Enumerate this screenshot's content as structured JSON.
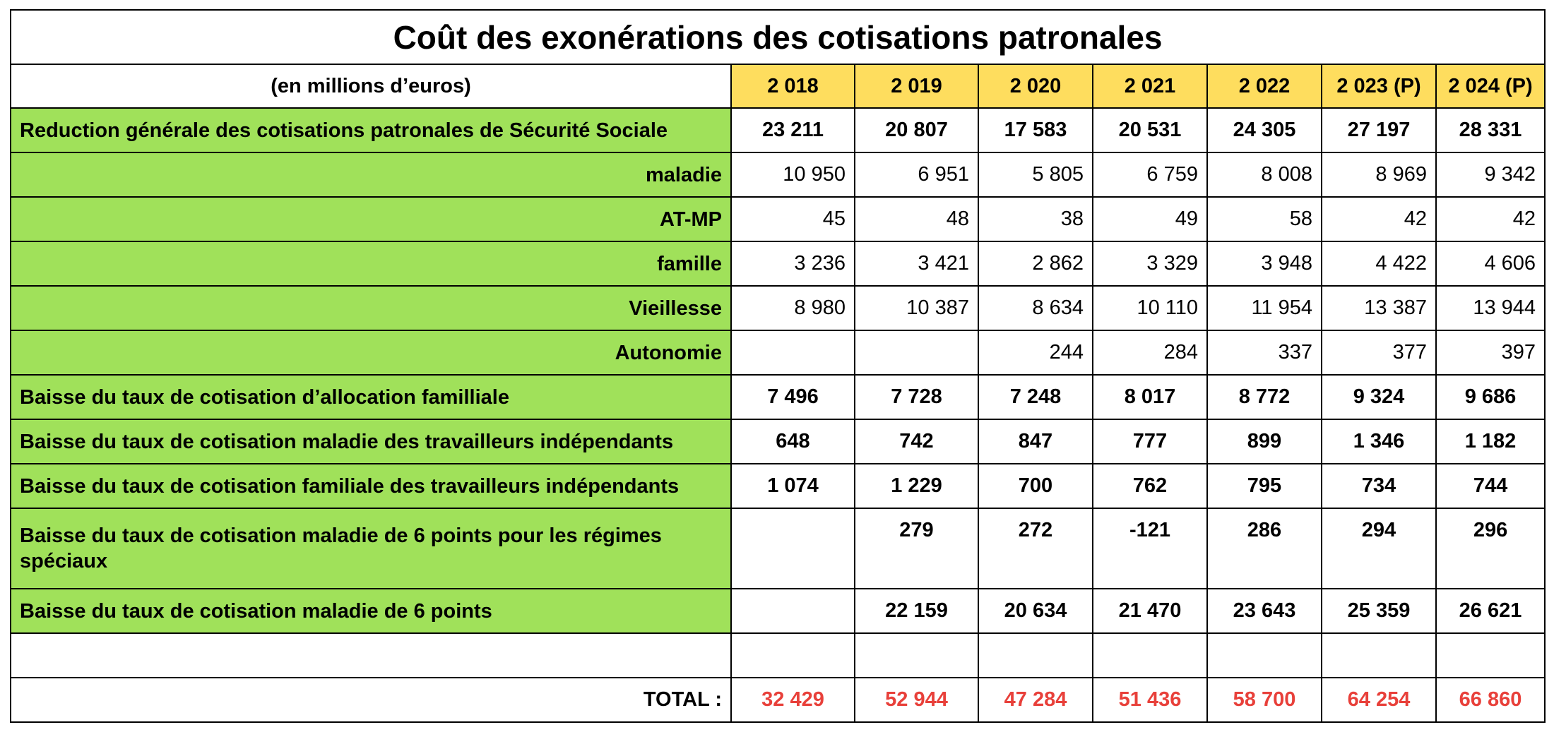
{
  "chart_data": {
    "type": "table",
    "title": "Coût des exonérations des cotisations patronales",
    "unit_label": "(en millions d’euros)",
    "columns": [
      "2 018",
      "2 019",
      "2 020",
      "2 021",
      "2 022",
      "2 023 (P)",
      "2 024 (P)"
    ],
    "rows": [
      {
        "label": "Reduction générale des cotisations patronales de Sécurité Sociale",
        "style": "main",
        "align": "left",
        "values": [
          "23 211",
          "20 807",
          "17 583",
          "20 531",
          "24 305",
          "27 197",
          "28 331"
        ]
      },
      {
        "label": "maladie",
        "style": "sub",
        "align": "right",
        "values": [
          "10 950",
          "6 951",
          "5 805",
          "6 759",
          "8 008",
          "8 969",
          "9 342"
        ]
      },
      {
        "label": "AT-MP",
        "style": "sub",
        "align": "right",
        "values": [
          "45",
          "48",
          "38",
          "49",
          "58",
          "42",
          "42"
        ]
      },
      {
        "label": "famille",
        "style": "sub",
        "align": "right",
        "values": [
          "3 236",
          "3 421",
          "2 862",
          "3 329",
          "3 948",
          "4 422",
          "4 606"
        ]
      },
      {
        "label": "Vieillesse",
        "style": "sub",
        "align": "right",
        "values": [
          "8 980",
          "10 387",
          "8 634",
          "10 110",
          "11 954",
          "13 387",
          "13 944"
        ]
      },
      {
        "label": "Autonomie",
        "style": "sub",
        "align": "right",
        "values": [
          "",
          "",
          "244",
          "284",
          "337",
          "377",
          "397"
        ]
      },
      {
        "label": "Baisse du taux de cotisation d’allocation familliale",
        "style": "main",
        "align": "left",
        "values": [
          "7 496",
          "7 728",
          "7 248",
          "8 017",
          "8 772",
          "9 324",
          "9 686"
        ]
      },
      {
        "label": "Baisse du taux de cotisation maladie des travailleurs indépendants",
        "style": "main",
        "align": "left",
        "values": [
          "648",
          "742",
          "847",
          "777",
          "899",
          "1 346",
          "1 182"
        ]
      },
      {
        "label": "Baisse du taux de cotisation familiale des travailleurs indépendants",
        "style": "main",
        "align": "left",
        "values": [
          "1 074",
          "1 229",
          "700",
          "762",
          "795",
          "734",
          "744"
        ]
      },
      {
        "label": "Baisse du taux de cotisation maladie de 6 points pour les régimes spéciaux",
        "style": "main tall",
        "align": "left",
        "values": [
          "",
          "279",
          "272",
          "-121",
          "286",
          "294",
          "296"
        ]
      },
      {
        "label": "Baisse du taux de cotisation maladie de 6 points",
        "style": "main",
        "align": "left",
        "values": [
          "",
          "22 159",
          "20 634",
          "21 470",
          "23 643",
          "25 359",
          "26 621"
        ]
      }
    ],
    "total": {
      "label": "TOTAL :",
      "values": [
        "32 429",
        "52 944",
        "47 284",
        "51 436",
        "58 700",
        "64 254",
        "66 860"
      ]
    },
    "colors": {
      "header_fill": "#fedd5e",
      "label_fill": "#a0e15a",
      "total_text": "#e8403a",
      "border": "#000000"
    }
  }
}
